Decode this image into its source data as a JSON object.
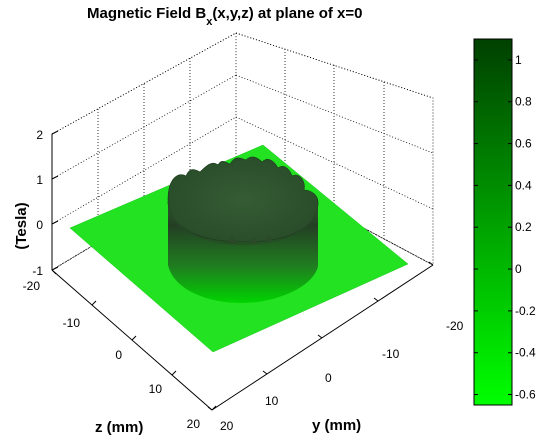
{
  "chart_data": {
    "type": "surface",
    "title": {
      "prefix": "Magnetic Field B",
      "subscript": "x",
      "suffix": "(x,y,z) at plane of x=0"
    },
    "zlabel": "(Tesla)",
    "xlabel": "z (mm)",
    "ylabel": "y (mm)",
    "zlim": [
      -1,
      2
    ],
    "z_ticks": [
      "-1",
      "0",
      "1",
      "2"
    ],
    "z_axis_ticks": [
      "-20",
      "-10",
      "0",
      "10",
      "20"
    ],
    "y_axis_ticks": [
      "-20",
      "-10",
      "0",
      "10",
      "20"
    ],
    "grid": true,
    "surface": {
      "outside_value": 0,
      "plateau_value": 1.1,
      "cylinder_radius_mm": 10,
      "domain_mm": [
        -20,
        20
      ]
    },
    "colorbar": {
      "range": [
        -0.65,
        1.1
      ],
      "ticks": [
        "1",
        "0.8",
        "0.6",
        "0.4",
        "0.2",
        "0",
        "-0.2",
        "-0.4",
        "-0.6"
      ],
      "tick_values": [
        1,
        0.8,
        0.6,
        0.4,
        0.2,
        0,
        -0.2,
        -0.4,
        -0.6
      ],
      "color_low": "#00ff00",
      "color_high": "#004000"
    }
  }
}
